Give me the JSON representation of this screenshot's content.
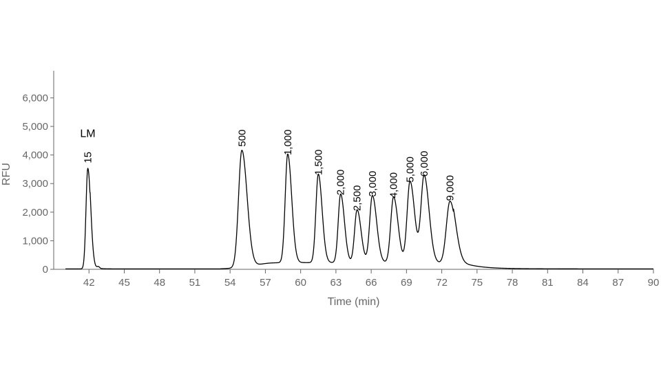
{
  "chart_data": {
    "type": "line",
    "title": "",
    "xlabel": "Time (min)",
    "ylabel": "RFU",
    "xlim": [
      39,
      90
    ],
    "ylim": [
      0,
      6800
    ],
    "x_ticks": [
      42,
      45,
      48,
      51,
      54,
      57,
      60,
      63,
      66,
      69,
      72,
      75,
      78,
      81,
      84,
      87,
      90
    ],
    "y_ticks": [
      0,
      1000,
      2000,
      3000,
      4000,
      5000,
      6000
    ],
    "y_tick_labels": [
      "0",
      "1,000",
      "2,000",
      "3,000",
      "4,000",
      "5,000",
      "6,000"
    ],
    "grid": false,
    "line_color": "#000000",
    "peaks": [
      {
        "x": 41.9,
        "y": 3520,
        "width": 0.18,
        "label": "15",
        "label_above": "LM"
      },
      {
        "x": 55.0,
        "y": 4100,
        "width": 0.33,
        "label": "500"
      },
      {
        "x": 58.9,
        "y": 3800,
        "width": 0.25,
        "label": "1,000"
      },
      {
        "x": 61.5,
        "y": 3100,
        "width": 0.24,
        "label": "1,500"
      },
      {
        "x": 63.4,
        "y": 2400,
        "width": 0.24,
        "label": "2,000"
      },
      {
        "x": 64.8,
        "y": 1850,
        "width": 0.25,
        "label": "2,500"
      },
      {
        "x": 66.1,
        "y": 2350,
        "width": 0.27,
        "label": "3,000"
      },
      {
        "x": 67.9,
        "y": 2300,
        "width": 0.28,
        "label": "4,000"
      },
      {
        "x": 69.3,
        "y": 2850,
        "width": 0.29,
        "label": "5,000"
      },
      {
        "x": 70.5,
        "y": 3050,
        "width": 0.31,
        "label": "6,000"
      },
      {
        "x": 72.7,
        "y": 2200,
        "width": 0.36,
        "label": "9,000"
      }
    ]
  }
}
